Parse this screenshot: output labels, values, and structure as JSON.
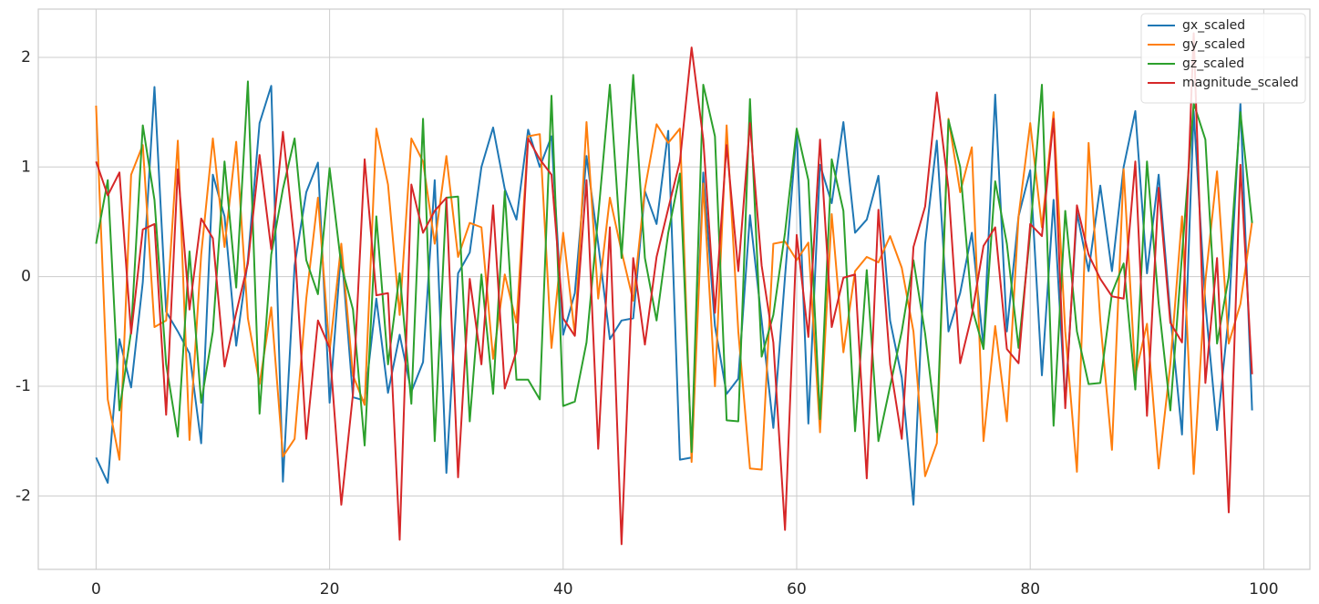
{
  "chart_data": {
    "type": "line",
    "x": [
      0,
      1,
      2,
      3,
      4,
      5,
      6,
      7,
      8,
      9,
      10,
      11,
      12,
      13,
      14,
      15,
      16,
      17,
      18,
      19,
      20,
      21,
      22,
      23,
      24,
      25,
      26,
      27,
      28,
      29,
      30,
      31,
      32,
      33,
      34,
      35,
      36,
      37,
      38,
      39,
      40,
      41,
      42,
      43,
      44,
      45,
      46,
      47,
      48,
      49,
      50,
      51,
      52,
      53,
      54,
      55,
      56,
      57,
      58,
      59,
      60,
      61,
      62,
      63,
      64,
      65,
      66,
      67,
      68,
      69,
      70,
      71,
      72,
      73,
      74,
      75,
      76,
      77,
      78,
      79,
      80,
      81,
      82,
      83,
      84,
      85,
      86,
      87,
      88,
      89,
      90,
      91,
      92,
      93,
      94,
      95,
      96,
      97,
      98,
      99
    ],
    "series": [
      {
        "name": "gx_scaled",
        "color": "#1f77b4",
        "values": [
          -1.65,
          -1.88,
          -0.57,
          -1.01,
          -0.05,
          1.73,
          -0.32,
          -0.5,
          -0.7,
          -1.52,
          0.93,
          0.55,
          -0.63,
          0.15,
          1.4,
          1.74,
          -1.87,
          0.1,
          0.77,
          1.04,
          -1.15,
          0.25,
          -1.1,
          -1.13,
          -0.2,
          -1.06,
          -0.53,
          -1.05,
          -0.78,
          0.88,
          -1.79,
          0.03,
          0.22,
          1.0,
          1.36,
          0.8,
          0.52,
          1.34,
          1.0,
          1.28,
          -0.53,
          -0.15,
          1.1,
          0.3,
          -0.57,
          -0.4,
          -0.38,
          0.78,
          0.48,
          1.33,
          -1.67,
          -1.65,
          0.95,
          -0.45,
          -1.07,
          -0.93,
          0.56,
          -0.4,
          -1.38,
          0.0,
          1.33,
          -1.34,
          1.02,
          0.67,
          1.41,
          0.4,
          0.52,
          0.92,
          -0.4,
          -0.92,
          -2.08,
          0.3,
          1.24,
          -0.5,
          -0.15,
          0.4,
          -0.64,
          1.66,
          -0.5,
          0.55,
          0.97,
          -0.9,
          0.7,
          -1.15,
          0.58,
          0.05,
          0.83,
          0.05,
          1.0,
          1.51,
          0.03,
          0.93,
          -0.35,
          -1.44,
          1.51,
          -0.25,
          -1.4,
          -0.35,
          1.58,
          -1.22
        ]
      },
      {
        "name": "gy_scaled",
        "color": "#ff7f0e",
        "values": [
          1.56,
          -1.12,
          -1.67,
          0.93,
          1.2,
          -0.46,
          -0.4,
          1.24,
          -1.49,
          0.2,
          1.26,
          0.27,
          1.23,
          -0.38,
          -0.98,
          -0.28,
          -1.64,
          -1.48,
          -0.2,
          0.72,
          -0.68,
          0.3,
          -0.9,
          -1.17,
          1.35,
          0.84,
          -0.35,
          1.26,
          1.05,
          0.3,
          1.1,
          0.18,
          0.49,
          0.45,
          -0.75,
          0.02,
          -0.42,
          1.28,
          1.3,
          -0.65,
          0.4,
          -0.53,
          1.41,
          -0.2,
          0.72,
          0.23,
          -0.22,
          0.8,
          1.39,
          1.22,
          1.35,
          -1.69,
          0.85,
          -1.0,
          1.38,
          -0.5,
          -1.75,
          -1.76,
          0.3,
          0.32,
          0.15,
          0.31,
          -1.42,
          0.57,
          -0.69,
          0.05,
          0.18,
          0.13,
          0.37,
          0.08,
          -0.5,
          -1.82,
          -1.52,
          1.44,
          0.77,
          1.18,
          -1.5,
          -0.45,
          -1.32,
          0.55,
          1.4,
          0.45,
          1.5,
          -0.5,
          -1.78,
          1.22,
          -0.4,
          -1.58,
          0.98,
          -0.9,
          -0.43,
          -1.75,
          -0.8,
          0.55,
          -1.8,
          -0.04,
          0.96,
          -0.61,
          -0.25,
          0.5
        ]
      },
      {
        "name": "gz_scaled",
        "color": "#2ca02c",
        "values": [
          0.3,
          0.88,
          -1.22,
          -0.5,
          1.38,
          0.7,
          -0.8,
          -1.46,
          0.23,
          -1.15,
          -0.5,
          1.05,
          -0.1,
          1.78,
          -1.25,
          0.2,
          0.8,
          1.26,
          0.15,
          -0.16,
          0.99,
          0.1,
          -0.3,
          -1.54,
          0.55,
          -0.8,
          0.03,
          -1.16,
          1.44,
          -1.5,
          0.72,
          0.73,
          -1.32,
          0.02,
          -1.07,
          0.78,
          -0.94,
          -0.94,
          -1.12,
          1.65,
          -1.18,
          -1.14,
          -0.6,
          0.55,
          1.75,
          0.17,
          1.84,
          0.17,
          -0.4,
          0.4,
          0.94,
          -1.6,
          1.75,
          1.28,
          -1.31,
          -1.32,
          1.62,
          -0.73,
          -0.35,
          0.4,
          1.35,
          0.88,
          -1.3,
          1.07,
          0.6,
          -1.41,
          0.06,
          -1.5,
          -1.0,
          -0.5,
          0.15,
          -0.52,
          -1.42,
          1.43,
          1.0,
          -0.28,
          -0.66,
          0.87,
          0.3,
          -0.65,
          0.4,
          1.75,
          -1.36,
          0.6,
          -0.5,
          -0.98,
          -0.97,
          -0.15,
          0.12,
          -1.03,
          1.05,
          -0.25,
          -1.22,
          0.2,
          1.58,
          1.25,
          -0.61,
          0.0,
          1.5,
          0.49
        ]
      },
      {
        "name": "magnitude_scaled",
        "color": "#d62728",
        "values": [
          1.05,
          0.74,
          0.95,
          -0.52,
          0.43,
          0.48,
          -1.26,
          0.98,
          -0.3,
          0.53,
          0.35,
          -0.82,
          -0.33,
          0.12,
          1.11,
          0.25,
          1.32,
          0.3,
          -1.48,
          -0.4,
          -0.65,
          -2.08,
          -1.07,
          1.07,
          -0.17,
          -0.15,
          -2.4,
          0.84,
          0.4,
          0.6,
          0.72,
          -1.83,
          -0.02,
          -0.8,
          0.65,
          -1.02,
          -0.68,
          1.26,
          1.07,
          0.93,
          -0.38,
          -0.54,
          0.88,
          -1.57,
          0.45,
          -2.44,
          0.17,
          -0.62,
          0.18,
          0.62,
          1.05,
          2.09,
          1.25,
          -0.33,
          1.2,
          0.05,
          1.4,
          0.1,
          -0.6,
          -2.31,
          0.38,
          -0.55,
          1.25,
          -0.46,
          -0.01,
          0.02,
          -1.84,
          0.61,
          -0.8,
          -1.48,
          0.27,
          0.64,
          1.68,
          0.8,
          -0.79,
          -0.35,
          0.28,
          0.45,
          -0.66,
          -0.79,
          0.48,
          0.37,
          1.44,
          -1.2,
          0.65,
          0.2,
          -0.02,
          -0.18,
          -0.2,
          1.05,
          -1.27,
          0.81,
          -0.42,
          -0.6,
          2.22,
          -0.97,
          0.17,
          -2.15,
          1.02,
          -0.89
        ]
      }
    ],
    "xlim": [
      -4.95,
      103.95
    ],
    "ylim": [
      -2.67,
      2.44
    ],
    "xticks": [
      0,
      20,
      40,
      60,
      80,
      100
    ],
    "yticks": [
      -2,
      -1,
      0,
      1,
      2
    ],
    "grid": true,
    "legend": "upper right"
  }
}
